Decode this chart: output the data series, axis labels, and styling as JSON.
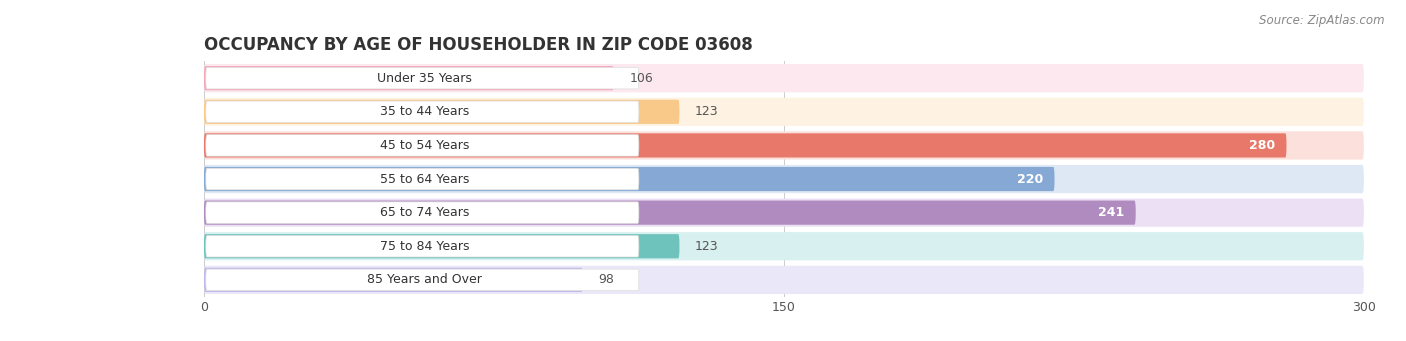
{
  "title": "OCCUPANCY BY AGE OF HOUSEHOLDER IN ZIP CODE 03608",
  "source": "Source: ZipAtlas.com",
  "categories": [
    "Under 35 Years",
    "35 to 44 Years",
    "45 to 54 Years",
    "55 to 64 Years",
    "65 to 74 Years",
    "75 to 84 Years",
    "85 Years and Over"
  ],
  "values": [
    106,
    123,
    280,
    220,
    241,
    123,
    98
  ],
  "bar_colors": [
    "#f4a7ba",
    "#f9c98a",
    "#e8796a",
    "#85a9d4",
    "#b08bbf",
    "#6ec4bc",
    "#c0b8e8"
  ],
  "bar_bg_colors": [
    "#fce8ee",
    "#fef3e2",
    "#fce0dc",
    "#dde8f4",
    "#ece0f4",
    "#d8f0f0",
    "#eae8f8"
  ],
  "xlim": [
    0,
    300
  ],
  "xticks": [
    0,
    150,
    300
  ],
  "title_fontsize": 12,
  "label_fontsize": 9,
  "value_fontsize": 9,
  "source_fontsize": 8.5
}
